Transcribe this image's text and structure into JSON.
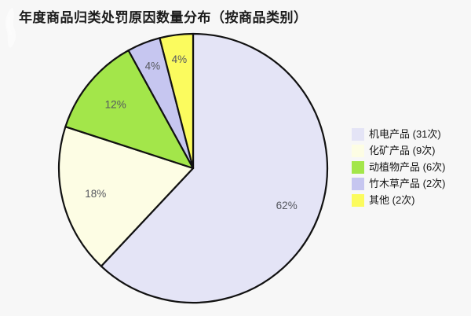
{
  "title": "年度商品归类处罚原因数量分布（按商品类别）",
  "chart_data": {
    "type": "pie",
    "title": "年度商品归类处罚原因数量分布（按商品类别）",
    "categories": [
      "机电产品",
      "化矿产品",
      "动植物产品",
      "竹木草产品",
      "其他"
    ],
    "values": [
      31,
      9,
      6,
      2,
      2
    ],
    "unit": "次",
    "percent_labels": [
      "62%",
      "18%",
      "12%",
      "4%",
      "4%"
    ],
    "legend_labels": [
      "机电产品 (31次)",
      "化矿产品 (9次)",
      "动植物产品 (6次)",
      "竹木草产品 (2次)",
      "其他 (2次)"
    ],
    "colors": [
      "#e4e4f6",
      "#fdfde4",
      "#a3e64a",
      "#c6c6f0",
      "#fbfb5e"
    ],
    "stroke_color": "#111111",
    "label_color": "#55575e",
    "legend_position": "right",
    "start_angle_deg": 0,
    "clockwise": true
  }
}
